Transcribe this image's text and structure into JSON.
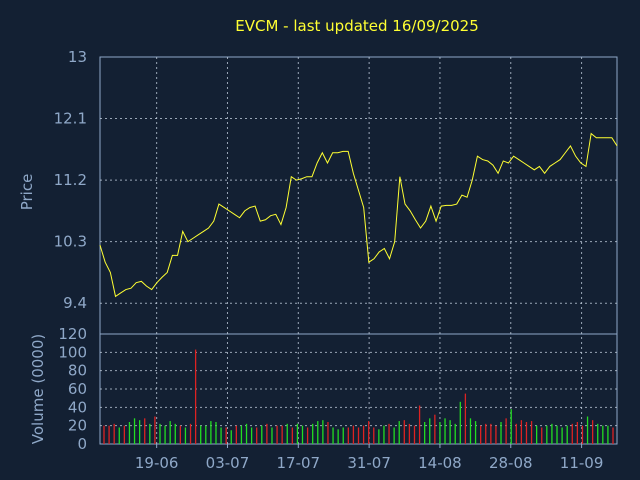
{
  "chart_data": [
    {
      "type": "line",
      "title": "EVCM - last updated 16/09/2025",
      "ylabel": "Price",
      "ylim": [
        8.95,
        13.0
      ],
      "yticks": [
        9.4,
        10.3,
        11.2,
        12.1,
        13
      ],
      "ytick_labels": [
        "9.4",
        "10.3",
        "11.2",
        "12.1",
        "13"
      ],
      "x_ticks": [
        "19-06",
        "03-07",
        "17-07",
        "31-07",
        "14-08",
        "28-08",
        "11-09"
      ],
      "x_tick_index": [
        8,
        18,
        28,
        38,
        48,
        58,
        68
      ],
      "x_range": [
        0,
        73
      ],
      "grid": true,
      "line_color": "#ffff33",
      "series": [
        {
          "values": [
            10.25,
            10.0,
            9.85,
            9.5,
            9.55,
            9.6,
            9.62,
            9.7,
            9.72,
            9.65,
            9.6,
            9.7,
            9.78,
            9.85,
            10.1,
            10.1,
            10.45,
            10.3,
            10.35,
            10.4,
            10.45,
            10.5,
            10.6,
            10.85,
            10.8,
            10.75,
            10.7,
            10.65,
            10.75,
            10.8,
            10.82,
            10.6,
            10.62,
            10.68,
            10.7,
            10.55,
            10.8,
            11.25,
            11.2,
            11.22,
            11.25,
            11.25,
            11.45,
            11.6,
            11.45,
            11.6,
            11.6,
            11.62,
            11.62,
            11.3,
            11.05,
            10.8,
            10.0,
            10.05,
            10.15,
            10.2,
            10.05,
            10.3,
            11.25,
            10.85,
            10.75,
            10.62,
            10.5,
            10.6,
            10.82,
            10.6,
            10.82,
            10.83,
            10.83,
            10.85,
            10.98,
            10.95,
            11.2,
            11.55,
            11.5,
            11.48,
            11.42,
            11.3,
            11.48,
            11.45,
            11.55,
            11.5,
            11.45,
            11.4,
            11.35,
            11.4,
            11.3,
            11.4,
            11.45,
            11.5,
            11.6,
            11.7,
            11.55,
            11.45,
            11.4,
            11.88,
            11.82,
            11.82,
            11.82,
            11.82,
            11.7
          ]
        }
      ]
    },
    {
      "type": "bar",
      "ylabel": "Volume (0000)",
      "ylim": [
        0,
        120
      ],
      "yticks": [
        0,
        20,
        40,
        60,
        80,
        100,
        120
      ],
      "ytick_labels": [
        "0",
        "20",
        "40",
        "60",
        "80",
        "100",
        "120"
      ],
      "grid": true,
      "up_color": "#22dd22",
      "down_color": "#dd2222",
      "series": [
        {
          "values": [
            20,
            20,
            22,
            18,
            20,
            24,
            28,
            26,
            28,
            22,
            30,
            22,
            20,
            25,
            22,
            20,
            18,
            22,
            103,
            20,
            20,
            25,
            24,
            18,
            18,
            15,
            20,
            20,
            22,
            18,
            18,
            20,
            22,
            18,
            20,
            20,
            22,
            18,
            22,
            20,
            18,
            22,
            25,
            26,
            24,
            18,
            16,
            18,
            18,
            20,
            18,
            20,
            25,
            18,
            16,
            20,
            22,
            18,
            25,
            26,
            22,
            20,
            42,
            24,
            28,
            32,
            24,
            28,
            26,
            22,
            46,
            55,
            28,
            25,
            20,
            22,
            22,
            20,
            24,
            28,
            38,
            22,
            26,
            24,
            25,
            20,
            18,
            20,
            22,
            20,
            18,
            20,
            22,
            24,
            20,
            30,
            26,
            22,
            20,
            20,
            18
          ],
          "direction": [
            "d",
            "d",
            "d",
            "u",
            "d",
            "u",
            "u",
            "u",
            "d",
            "u",
            "d",
            "u",
            "u",
            "u",
            "u",
            "d",
            "u",
            "d",
            "d",
            "u",
            "u",
            "u",
            "u",
            "u",
            "d",
            "u",
            "d",
            "u",
            "u",
            "u",
            "d",
            "u",
            "d",
            "u",
            "d",
            "d",
            "u",
            "d",
            "u",
            "u",
            "d",
            "u",
            "u",
            "u",
            "d",
            "u",
            "u",
            "u",
            "d",
            "d",
            "d",
            "d",
            "d",
            "d",
            "u",
            "u",
            "d",
            "u",
            "u",
            "d",
            "d",
            "d",
            "d",
            "u",
            "u",
            "d",
            "u",
            "u",
            "u",
            "u",
            "u",
            "d",
            "u",
            "u",
            "d",
            "d",
            "d",
            "d",
            "u",
            "d",
            "u",
            "d",
            "d",
            "d",
            "d",
            "u",
            "d",
            "u",
            "u",
            "u",
            "u",
            "u",
            "d",
            "d",
            "d",
            "u",
            "d",
            "u",
            "u",
            "u",
            "d"
          ]
        }
      ]
    }
  ]
}
